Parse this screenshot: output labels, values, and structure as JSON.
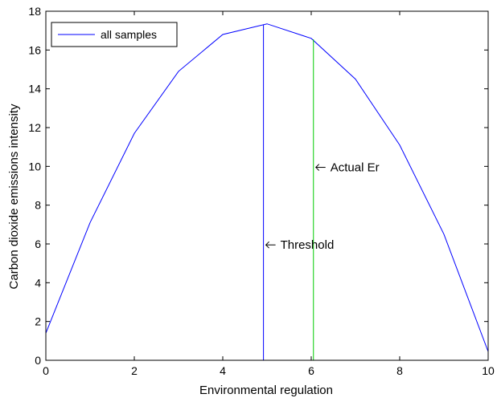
{
  "chart_data": {
    "type": "line",
    "title": "",
    "xlabel": "Environmental regulation",
    "ylabel": "Carbon dioxide emissions intensity",
    "xlim": [
      0,
      10
    ],
    "ylim": [
      0,
      18
    ],
    "xticks": [
      0,
      2,
      4,
      6,
      8,
      10
    ],
    "yticks": [
      0,
      2,
      4,
      6,
      8,
      10,
      12,
      14,
      16,
      18
    ],
    "grid": false,
    "legend_position": "top-left",
    "series": [
      {
        "name": "all samples",
        "color": "#0000ff",
        "x": [
          0,
          1,
          2,
          3,
          4,
          5,
          6,
          7,
          8,
          9,
          10
        ],
        "y": [
          1.4,
          7.1,
          11.7,
          14.9,
          16.8,
          17.35,
          16.6,
          14.5,
          11.1,
          6.5,
          0.45
        ]
      }
    ],
    "vertical_lines": [
      {
        "x": 4.92,
        "y_top": 17.3,
        "color": "#0000ff"
      },
      {
        "x": 6.05,
        "y_top": 16.55,
        "color": "#00cc00"
      }
    ],
    "annotations": [
      {
        "text": "Threshold",
        "x": 4.92,
        "y": 5.95
      },
      {
        "text": "Actual Er",
        "x": 6.05,
        "y": 9.95
      }
    ]
  }
}
